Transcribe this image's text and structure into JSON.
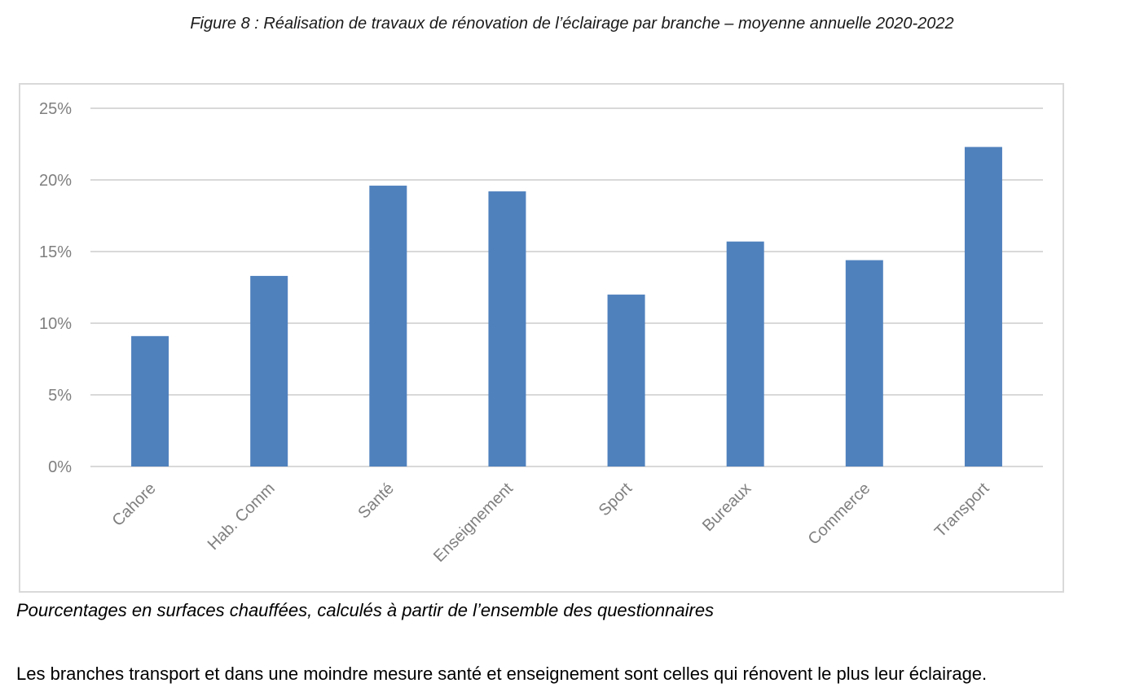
{
  "figure": {
    "title": "Figure 8 : Réalisation de travaux de rénovation de l’éclairage par branche – moyenne annuelle 2020-2022"
  },
  "caption": "Pourcentages en surfaces chauffées, calculés à partir de l’ensemble des questionnaires",
  "body_text": "Les branches transport et dans une moindre mesure santé et enseignement sont celles qui rénovent le plus leur éclairage.",
  "chart_data": {
    "type": "bar",
    "categories": [
      "Cahore",
      "Hab. Comm",
      "Santé",
      "Enseignement",
      "Sport",
      "Bureaux",
      "Commerce",
      "Transport"
    ],
    "values": [
      9.1,
      13.3,
      19.6,
      19.2,
      12.0,
      15.7,
      14.4,
      22.3
    ],
    "ylim": [
      0,
      25
    ],
    "yticks": [
      0,
      5,
      10,
      15,
      20,
      25
    ],
    "ytick_labels": [
      "0%",
      "5%",
      "10%",
      "15%",
      "20%",
      "25%"
    ],
    "title": "",
    "xlabel": "",
    "ylabel": "",
    "grid": true,
    "legend": false,
    "bar_color": "#4f81bd",
    "grid_color": "#d9d9d9",
    "label_color": "#7f7f7f"
  }
}
